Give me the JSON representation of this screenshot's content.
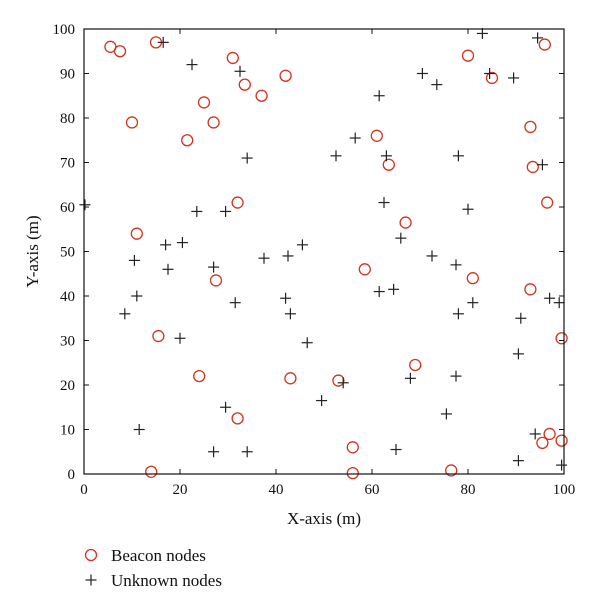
{
  "chart_data": {
    "type": "scatter",
    "xlabel": "X-axis (m)",
    "ylabel": "Y-axis (m)",
    "xlim": [
      0,
      100
    ],
    "ylim": [
      0,
      100
    ],
    "xticks": [
      0,
      20,
      40,
      60,
      80,
      100
    ],
    "yticks": [
      0,
      10,
      20,
      30,
      40,
      50,
      60,
      70,
      80,
      90,
      100
    ],
    "grid": false,
    "legend_position": "bottom-left, below plot",
    "series": [
      {
        "name": "Beacon nodes",
        "marker": "circle",
        "color": "#d0341f",
        "points": [
          [
            5.5,
            96
          ],
          [
            7.5,
            95
          ],
          [
            15,
            97
          ],
          [
            31,
            93.5
          ],
          [
            42,
            89.5
          ],
          [
            33.5,
            87.5
          ],
          [
            37,
            85
          ],
          [
            25,
            83.5
          ],
          [
            10,
            79
          ],
          [
            27,
            79
          ],
          [
            21.5,
            75
          ],
          [
            61,
            76
          ],
          [
            63.5,
            69.5
          ],
          [
            32,
            61
          ],
          [
            11,
            54
          ],
          [
            67,
            56.5
          ],
          [
            58.5,
            46
          ],
          [
            81,
            44
          ],
          [
            27.5,
            43.5
          ],
          [
            15.5,
            31
          ],
          [
            69,
            24.5
          ],
          [
            24,
            22
          ],
          [
            43,
            21.5
          ],
          [
            53,
            21
          ],
          [
            32,
            12.5
          ],
          [
            56,
            6
          ],
          [
            14,
            0.5
          ],
          [
            56,
            0.2
          ],
          [
            76.5,
            0.8
          ],
          [
            80,
            94
          ],
          [
            85,
            89
          ],
          [
            96,
            96.5
          ],
          [
            93,
            78
          ],
          [
            93.5,
            69
          ],
          [
            96.5,
            61
          ],
          [
            93,
            41.5
          ],
          [
            99.5,
            30.5
          ],
          [
            97,
            9
          ],
          [
            99.5,
            7.5
          ],
          [
            95.5,
            7
          ]
        ]
      },
      {
        "name": "Unknown nodes",
        "marker": "plus",
        "color": "#222222",
        "points": [
          [
            16.5,
            97
          ],
          [
            22.5,
            92
          ],
          [
            32.5,
            90.5
          ],
          [
            83,
            99
          ],
          [
            94.5,
            98
          ],
          [
            70.5,
            90
          ],
          [
            73.5,
            87.5
          ],
          [
            84.5,
            90
          ],
          [
            89.5,
            89
          ],
          [
            61.5,
            85
          ],
          [
            56.5,
            75.5
          ],
          [
            52.5,
            71.5
          ],
          [
            63,
            71.5
          ],
          [
            34,
            71
          ],
          [
            78,
            71.5
          ],
          [
            95.5,
            69.5
          ],
          [
            0.2,
            60.5
          ],
          [
            23.5,
            59
          ],
          [
            29.5,
            59
          ],
          [
            62.5,
            61
          ],
          [
            80,
            59.5
          ],
          [
            66,
            53
          ],
          [
            17,
            51.5
          ],
          [
            20.5,
            52
          ],
          [
            45.5,
            51.5
          ],
          [
            10.5,
            48
          ],
          [
            17.5,
            46
          ],
          [
            27,
            46.5
          ],
          [
            37.5,
            48.5
          ],
          [
            42.5,
            49
          ],
          [
            72.5,
            49
          ],
          [
            77.5,
            47
          ],
          [
            11,
            40
          ],
          [
            31.5,
            38.5
          ],
          [
            42,
            39.5
          ],
          [
            61.5,
            41
          ],
          [
            64.5,
            41.5
          ],
          [
            81,
            38.5
          ],
          [
            97,
            39.5
          ],
          [
            99,
            38.5
          ],
          [
            8.5,
            36
          ],
          [
            43,
            36
          ],
          [
            78,
            36
          ],
          [
            91,
            35
          ],
          [
            20,
            30.5
          ],
          [
            46.5,
            29.5
          ],
          [
            90.5,
            27
          ],
          [
            68,
            21.5
          ],
          [
            77.5,
            22
          ],
          [
            49.5,
            16.5
          ],
          [
            54,
            20.5
          ],
          [
            29.5,
            15
          ],
          [
            75.5,
            13.5
          ],
          [
            11.5,
            10
          ],
          [
            94,
            9
          ],
          [
            27,
            5
          ],
          [
            34,
            5
          ],
          [
            65,
            5.5
          ],
          [
            90.5,
            3
          ],
          [
            99.5,
            2
          ]
        ]
      }
    ]
  }
}
